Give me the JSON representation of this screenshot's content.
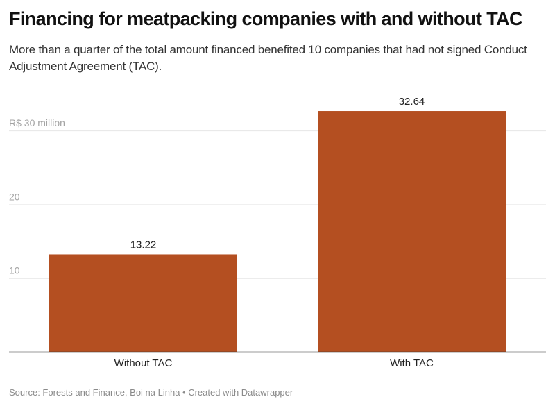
{
  "header": {
    "title": "Financing for meatpacking companies with and without TAC",
    "subtitle": "More than a quarter of the total amount financed benefited 10 companies that had not signed Conduct Adjustment Agreement (TAC)."
  },
  "footer": {
    "source": "Source: Forests and Finance, Boi na Linha • Created with Datawrapper"
  },
  "colors": {
    "bar": "#b44f21",
    "grid": "#e6e6e6",
    "baseline": "#333333"
  },
  "chart_data": {
    "type": "bar",
    "title": "Financing for meatpacking companies with and without TAC",
    "xlabel": "",
    "ylabel": "",
    "categories": [
      "Without TAC",
      "With TAC"
    ],
    "values": [
      13.22,
      32.64
    ],
    "value_labels": [
      "13.22",
      "32.64"
    ],
    "ylim": [
      0,
      32.64
    ],
    "yticks": [
      {
        "value": 10,
        "label": "10"
      },
      {
        "value": 20,
        "label": "20"
      },
      {
        "value": 30,
        "label": "R$ 30 million"
      }
    ],
    "grid": true,
    "legend": "none",
    "units": "R$ million"
  }
}
